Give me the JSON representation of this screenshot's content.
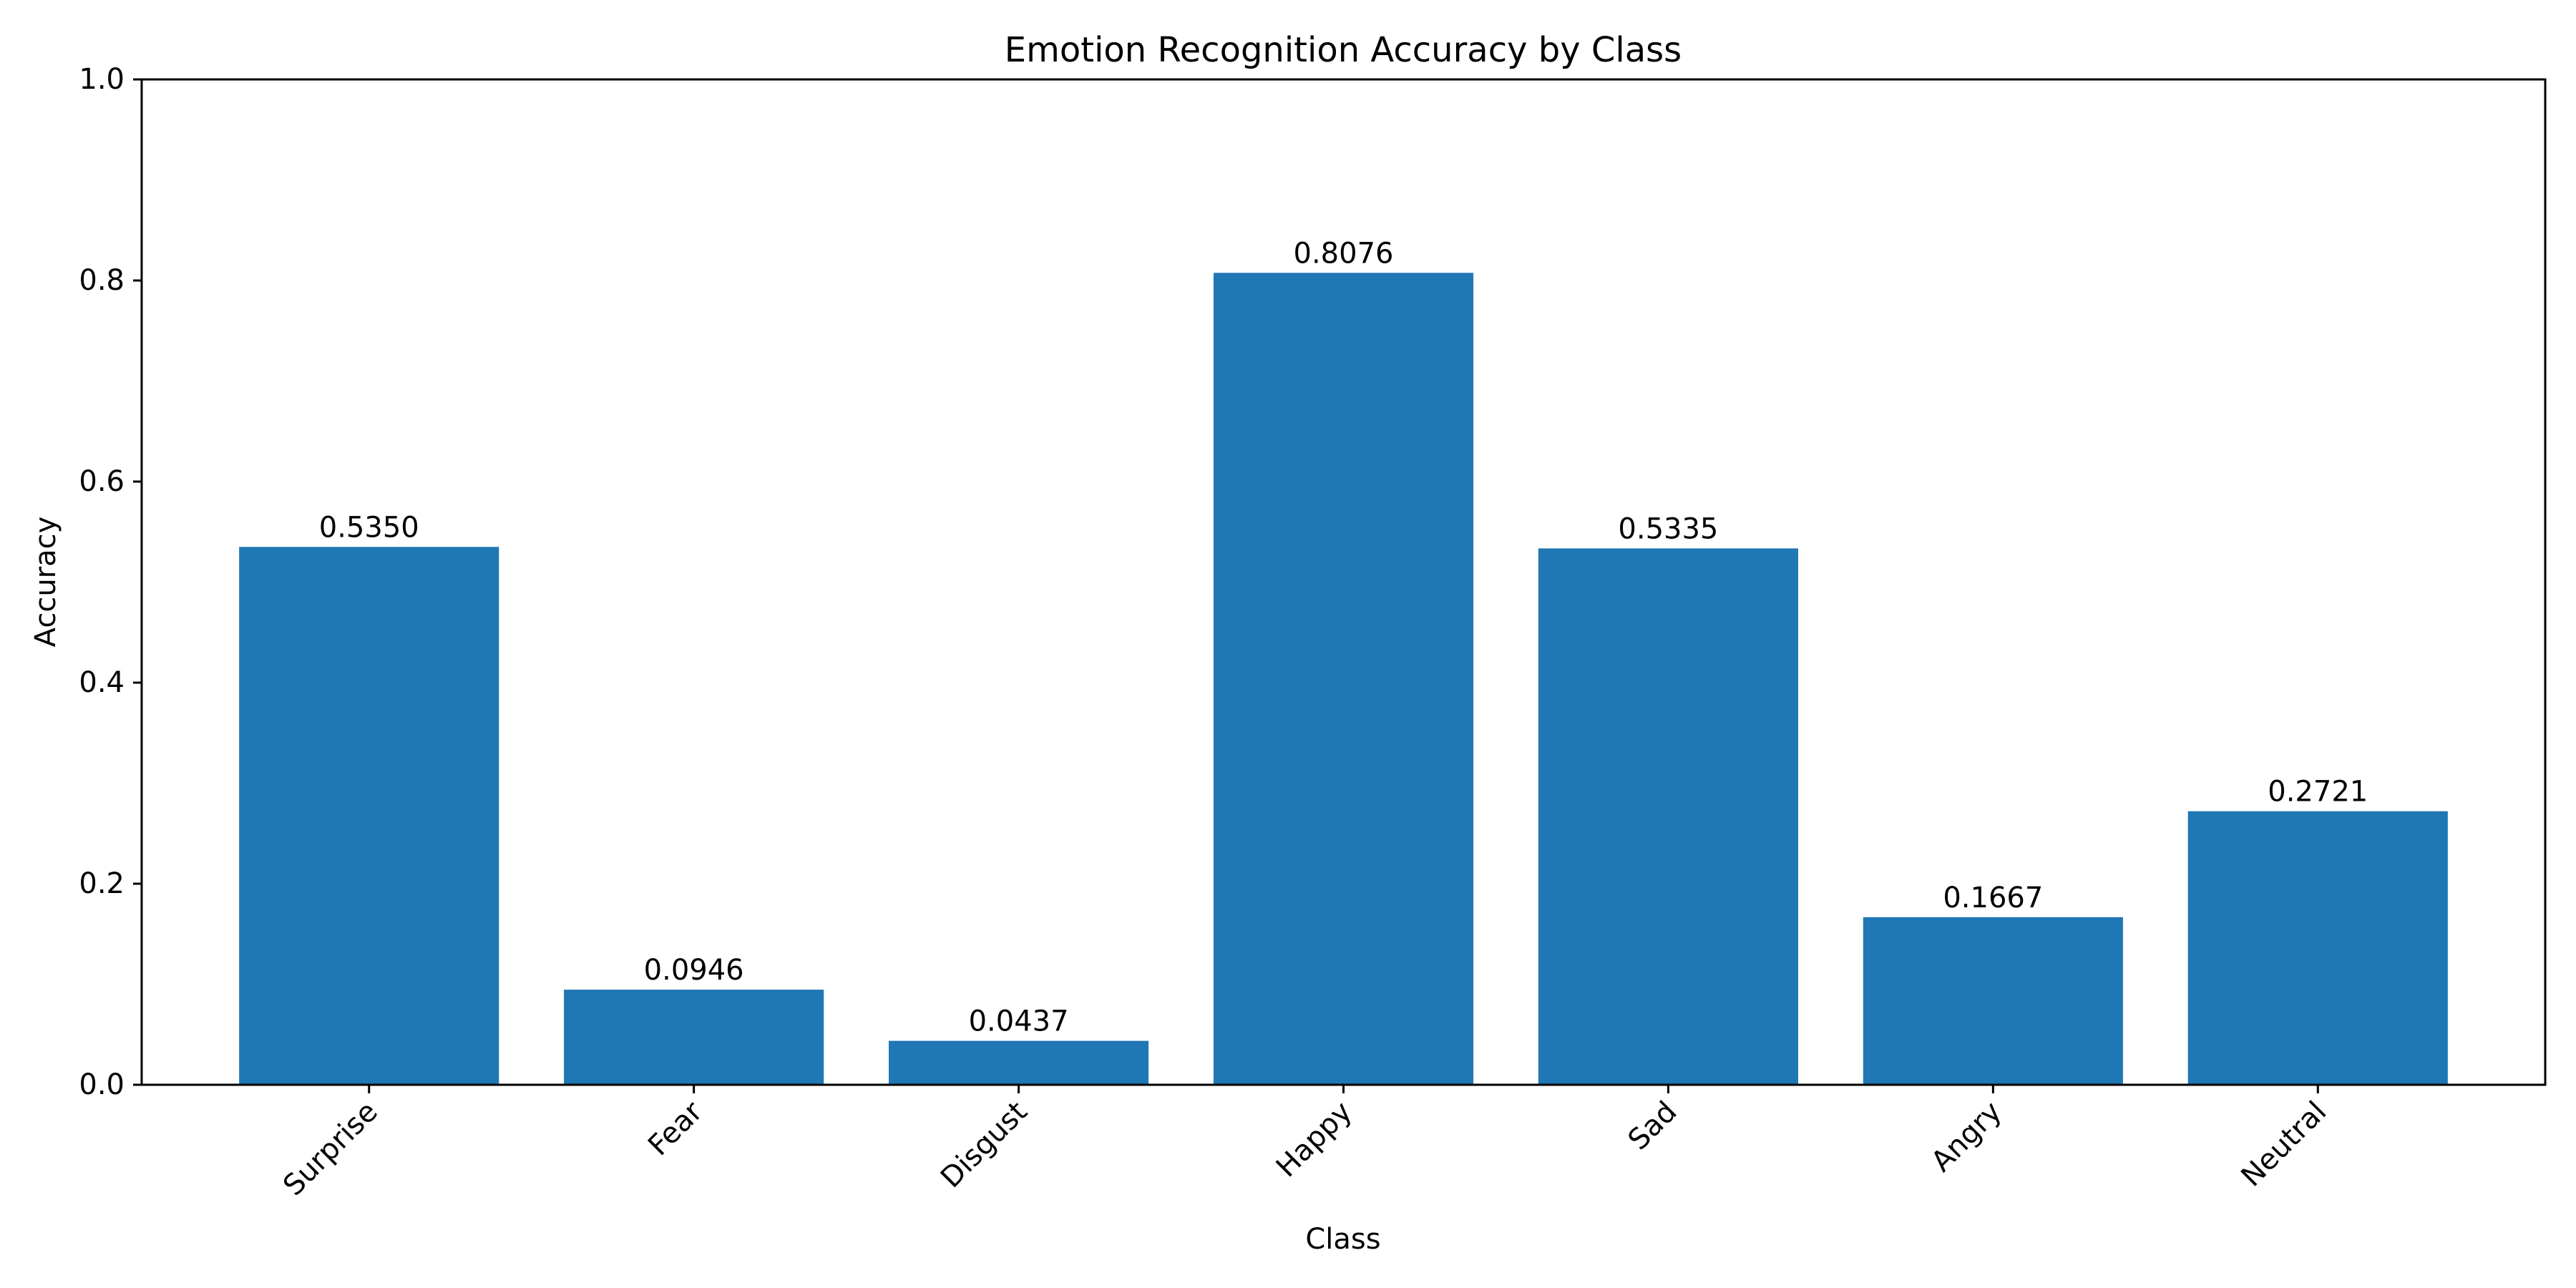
{
  "chart_data": {
    "type": "bar",
    "title": "Emotion Recognition Accuracy by Class",
    "xlabel": "Class",
    "ylabel": "Accuracy",
    "categories": [
      "Surprise",
      "Fear",
      "Disgust",
      "Happy",
      "Sad",
      "Angry",
      "Neutral"
    ],
    "values": [
      0.535,
      0.0946,
      0.0437,
      0.8076,
      0.5335,
      0.1667,
      0.2721
    ],
    "value_labels": [
      "0.5350",
      "0.0946",
      "0.0437",
      "0.8076",
      "0.5335",
      "0.1667",
      "0.2721"
    ],
    "ylim": [
      0,
      1.0
    ],
    "yticks": [
      0.0,
      0.2,
      0.4,
      0.6,
      0.8,
      1.0
    ],
    "ytick_labels": [
      "0.0",
      "0.2",
      "0.4",
      "0.6",
      "0.8",
      "1.0"
    ],
    "bar_color": "#1f77b4",
    "grid": false,
    "xtick_rotation_deg": 45
  }
}
